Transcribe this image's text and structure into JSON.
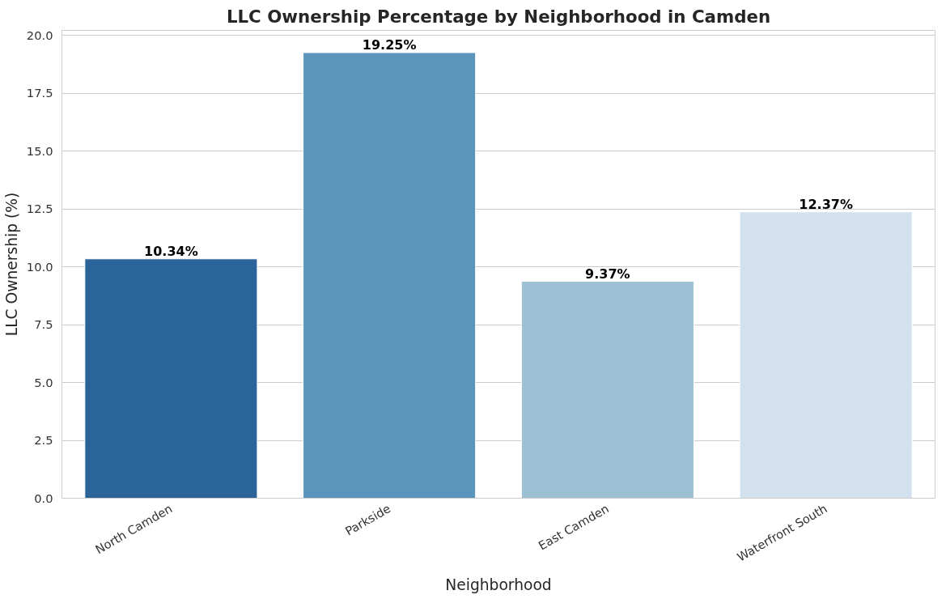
{
  "chart_data": {
    "type": "bar",
    "title": "LLC Ownership Percentage by Neighborhood in Camden",
    "xlabel": "Neighborhood",
    "ylabel": "LLC Ownership (%)",
    "categories": [
      "North Camden",
      "Parkside",
      "East Camden",
      "Waterfront South"
    ],
    "values": [
      10.34,
      19.25,
      9.37,
      12.37
    ],
    "colors": [
      "#2b6499",
      "#5b95bb",
      "#9dc0d4",
      "#d3e1ef"
    ],
    "value_labels": [
      "10.34%",
      "19.25%",
      "9.37%",
      "12.37%"
    ],
    "ylim": [
      0,
      20.21
    ],
    "yticks": [
      {
        "value": 0,
        "label": "0.0"
      },
      {
        "value": 2.5,
        "label": "2.5"
      },
      {
        "value": 5,
        "label": "5.0"
      },
      {
        "value": 7.5,
        "label": "7.5"
      },
      {
        "value": 10,
        "label": "10.0"
      },
      {
        "value": 12.5,
        "label": "12.5"
      },
      {
        "value": 15,
        "label": "15.0"
      },
      {
        "value": 17.5,
        "label": "17.5"
      },
      {
        "value": 20,
        "label": "20.0"
      }
    ],
    "grid": "y"
  }
}
